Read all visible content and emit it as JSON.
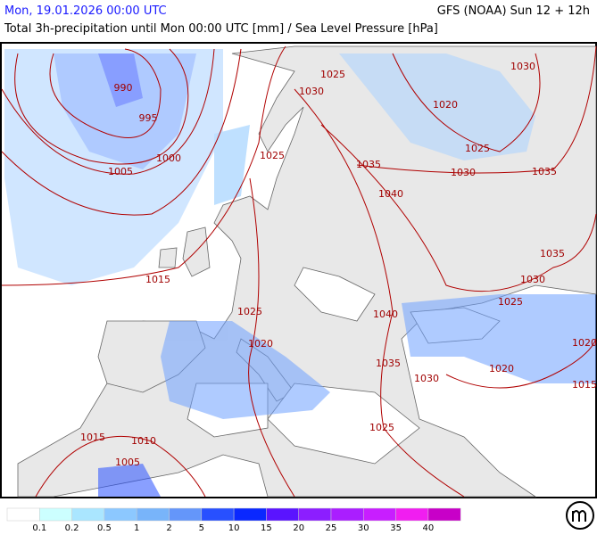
{
  "header": {
    "date": "Mon, 19.01.2026 00:00 UTC",
    "model": "GFS (NOAA) Sun 12 + 12h",
    "subtitle": "Total 3h-precipitation until Mon 00:00 UTC [mm] / Sea Level Pressure [hPa]"
  },
  "isobar_labels": [
    990,
    995,
    1000,
    1005,
    1015,
    1015,
    1010,
    1005,
    1025,
    1030,
    1025,
    1035,
    1040,
    1030,
    1020,
    1025,
    1030,
    1035,
    1035,
    1030,
    1025,
    1025,
    1040,
    1020,
    1035,
    1030,
    1020,
    1020,
    1015,
    1025
  ],
  "legend": {
    "labels": [
      0.1,
      0.2,
      0.5,
      1,
      2,
      5,
      10,
      15,
      20,
      25,
      30,
      35,
      40
    ],
    "colors": [
      "#ffffff",
      "#ccffff",
      "#aae6ff",
      "#8cc8ff",
      "#78b4fa",
      "#6496fa",
      "#2850ff",
      "#0a28ff",
      "#5a14ff",
      "#8c1eff",
      "#aa1eff",
      "#c81eff",
      "#f01ef0",
      "#c800c8"
    ]
  }
}
